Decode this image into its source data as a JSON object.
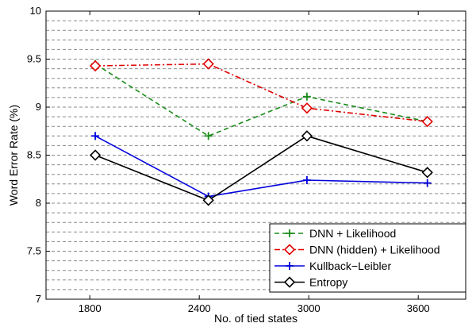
{
  "chart_data": {
    "type": "line",
    "title": "",
    "xlabel": "No. of tied states",
    "ylabel": "Word Error Rate (%)",
    "xlim": [
      1560,
      3860
    ],
    "ylim": [
      7,
      10
    ],
    "x_ticks": [
      1800,
      2400,
      3000,
      3600
    ],
    "y_ticks": [
      7,
      7.5,
      8,
      8.5,
      9,
      9.5,
      10
    ],
    "y_tick_labels": [
      "7",
      "7.5",
      "8",
      "8.5",
      "9",
      "9.5",
      "10"
    ],
    "minor_y_step": 0.1,
    "grid": "dashed horizontal",
    "legend_position": "bottom-right",
    "series": [
      {
        "name": "DNN + Likelihood",
        "color": "#1a8c1a",
        "line_style": "dashed",
        "marker": "plus",
        "x": [
          1830,
          2450,
          2990,
          3650
        ],
        "y": [
          9.45,
          8.7,
          9.11,
          8.85
        ]
      },
      {
        "name": "DNN (hidden) + Likelihood",
        "color": "#e00000",
        "line_style": "dashdot",
        "marker": "diamond",
        "x": [
          1830,
          2450,
          2990,
          3650
        ],
        "y": [
          9.43,
          9.45,
          8.99,
          8.85
        ]
      },
      {
        "name": "Kullback−Leibler",
        "color": "#0000dd",
        "line_style": "solid",
        "marker": "plus",
        "x": [
          1830,
          2450,
          2990,
          3650
        ],
        "y": [
          8.7,
          8.07,
          8.24,
          8.21
        ]
      },
      {
        "name": "Entropy",
        "color": "#000000",
        "line_style": "solid",
        "marker": "diamond",
        "x": [
          1830,
          2450,
          2990,
          3650
        ],
        "y": [
          8.5,
          8.03,
          8.7,
          8.32
        ]
      }
    ]
  }
}
